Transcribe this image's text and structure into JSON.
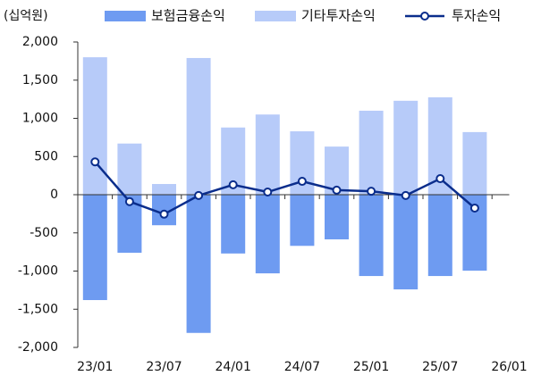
{
  "chart_data": {
    "type": "bar",
    "y_unit_label": "(십억원)",
    "categories": [
      "23/01",
      null,
      "23/07",
      null,
      "24/01",
      null,
      "24/07",
      null,
      "25/01",
      null,
      "25/07",
      null,
      "26/01"
    ],
    "series": [
      {
        "name": "보험금융손익",
        "color": "#6e9bf1",
        "values": [
          -1380,
          -760,
          -400,
          -1810,
          -770,
          -1030,
          -670,
          -585,
          -1065,
          -1240,
          -1065,
          -995,
          null
        ]
      },
      {
        "name": "기타투자손익",
        "color": "#b7cbf9",
        "values": [
          1800,
          670,
          140,
          1790,
          880,
          1050,
          830,
          630,
          1100,
          1230,
          1275,
          820,
          null
        ]
      },
      {
        "name": "투자손익",
        "type": "line",
        "color": "#0a2d8c",
        "values": [
          430,
          -90,
          -255,
          -10,
          130,
          35,
          175,
          60,
          45,
          -10,
          210,
          -175,
          null
        ]
      }
    ],
    "ylim": [
      -2000,
      2000
    ],
    "yticks": [
      {
        "value": -2000,
        "label": "-2,000"
      },
      {
        "value": -1500,
        "label": "-1,500"
      },
      {
        "value": -1000,
        "label": "-1,000"
      },
      -500,
      0,
      500,
      {
        "value": 1000,
        "label": "1,000"
      },
      {
        "value": 1500,
        "label": "1,500"
      },
      {
        "value": 2000,
        "label": "2,000"
      }
    ],
    "grid": false,
    "legend": "top"
  }
}
